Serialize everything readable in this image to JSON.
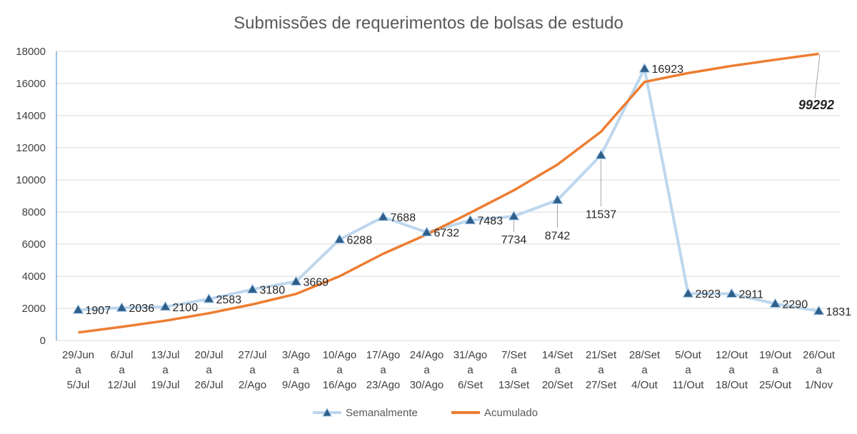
{
  "chart_data": {
    "type": "line",
    "title": "Submissões de requerimentos de bolsas de estudo",
    "xlabel": "",
    "ylabel": "",
    "ylim": [
      0,
      18000
    ],
    "yticks": [
      0,
      2000,
      4000,
      6000,
      8000,
      10000,
      12000,
      14000,
      16000,
      18000
    ],
    "grid": true,
    "legend": "bottom",
    "categories": [
      [
        "29/Jun",
        "a",
        "5/Jul"
      ],
      [
        "6/Jul",
        "a",
        "12/Jul"
      ],
      [
        "13/Jul",
        "a",
        "19/Jul"
      ],
      [
        "20/Jul",
        "a",
        "26/Jul"
      ],
      [
        "27/Jul",
        "a",
        "2/Ago"
      ],
      [
        "3/Ago",
        "a",
        "9/Ago"
      ],
      [
        "10/Ago",
        "a",
        "16/Ago"
      ],
      [
        "17/Ago",
        "a",
        "23/Ago"
      ],
      [
        "24/Ago",
        "a",
        "30/Ago"
      ],
      [
        "31/Ago",
        "a",
        "6/Set"
      ],
      [
        "7/Set",
        "a",
        "13/Set"
      ],
      [
        "14/Set",
        "a",
        "20/Set"
      ],
      [
        "21/Set",
        "a",
        "27/Set"
      ],
      [
        "28/Set",
        "a",
        "4/Out"
      ],
      [
        "5/Out",
        "a",
        "11/Out"
      ],
      [
        "12/Out",
        "a",
        "18/Out"
      ],
      [
        "19/Out",
        "a",
        "25/Out"
      ],
      [
        "26/Out",
        "a",
        "1/Nov"
      ]
    ],
    "series": [
      {
        "name": "Semanalmente",
        "color": "#bdd7ee",
        "marker": "triangle",
        "marker_color": "#2e5f8a",
        "values": [
          1907,
          2036,
          2100,
          2583,
          3180,
          3669,
          6288,
          7688,
          6732,
          7483,
          7734,
          8742,
          11537,
          16923,
          2923,
          2911,
          2290,
          1831
        ],
        "data_labels": [
          "1907",
          "2036",
          "2100",
          "2583",
          "3180",
          "3669",
          "6288",
          "7688",
          "6732",
          "7483",
          "7734",
          "8742",
          "11537",
          "16923",
          "2923",
          "2911",
          "2290",
          "1831"
        ]
      },
      {
        "name": "Acumulado",
        "color": "#ed7d31",
        "marker": "none",
        "values": [
          500,
          850,
          1230,
          1700,
          2250,
          2900,
          4000,
          5400,
          6600,
          7950,
          9350,
          10950,
          13000,
          16100,
          16650,
          17100,
          17480,
          17850
        ]
      }
    ],
    "annotation": {
      "text": "99292"
    }
  }
}
